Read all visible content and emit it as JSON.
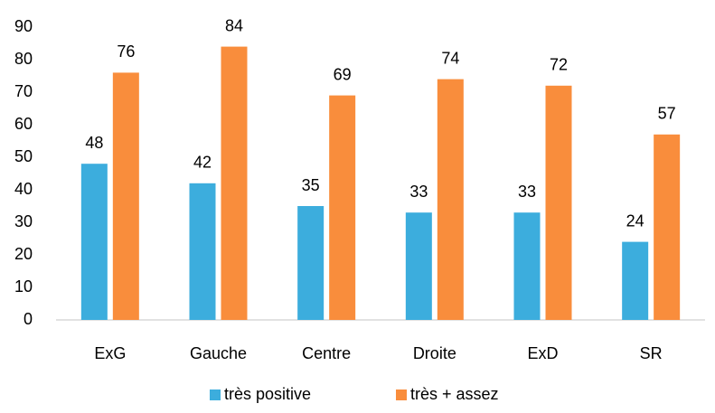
{
  "chart_data": {
    "type": "bar",
    "categories": [
      "ExG",
      "Gauche",
      "Centre",
      "Droite",
      "ExD",
      "SR"
    ],
    "series": [
      {
        "name": "très positive",
        "color": "#3caddd",
        "values": [
          48,
          42,
          35,
          33,
          33,
          24
        ]
      },
      {
        "name": "très + assez",
        "color": "#f98d3c",
        "values": [
          76,
          84,
          69,
          74,
          72,
          57
        ]
      }
    ],
    "ylim": [
      0,
      90
    ],
    "yticks": [
      0,
      10,
      20,
      30,
      40,
      50,
      60,
      70,
      80,
      90
    ],
    "grid": false,
    "legend": "bottom"
  }
}
